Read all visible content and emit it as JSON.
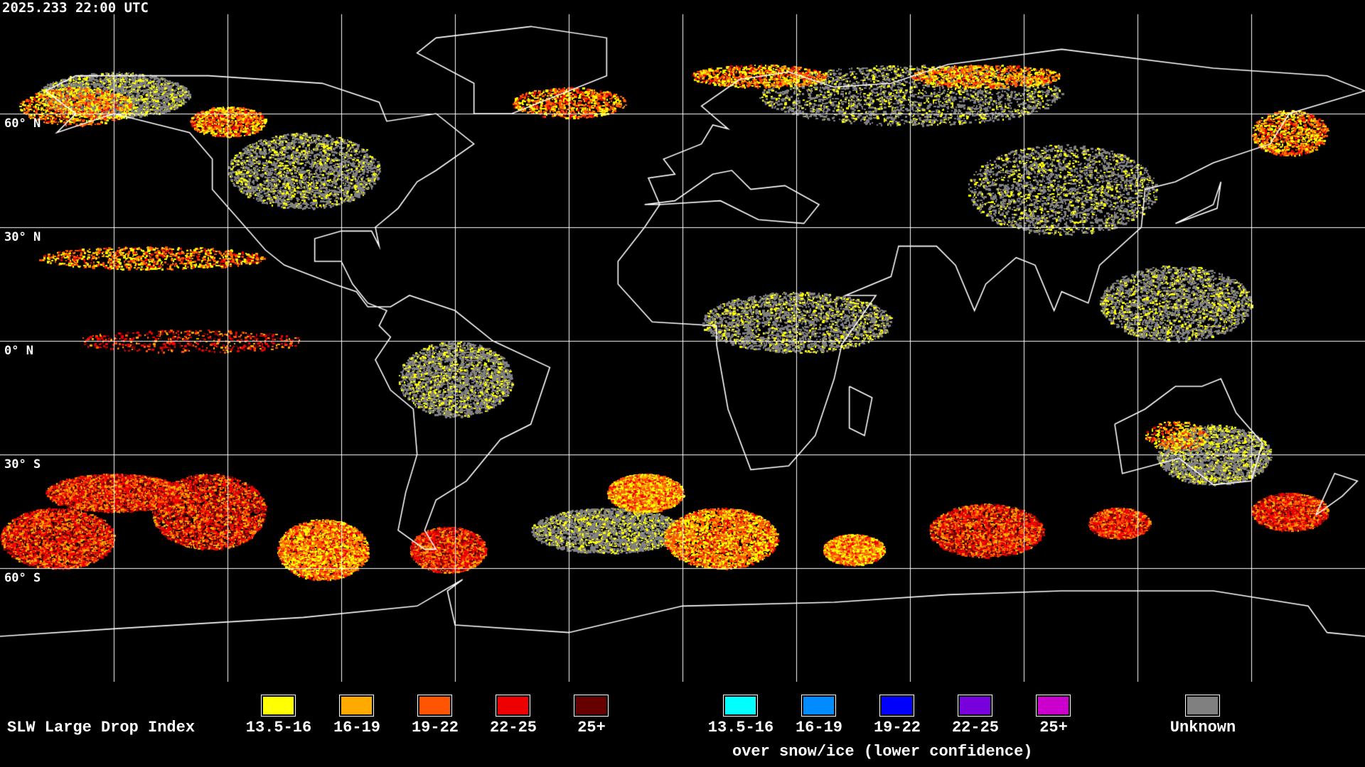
{
  "timestamp": "2025.233 22:00 UTC",
  "latitude_labels": [
    "60° N",
    "30° N",
    "0° N",
    "30° S",
    "60° S"
  ],
  "legend": {
    "title": "SLW Large Drop Index",
    "primary": [
      {
        "label": "13.5-16",
        "color": "#ffff00"
      },
      {
        "label": "16-19",
        "color": "#ffaa00"
      },
      {
        "label": "19-22",
        "color": "#ff5500"
      },
      {
        "label": "22-25",
        "color": "#ee0000"
      },
      {
        "label": "25+",
        "color": "#660000"
      }
    ],
    "snow_ice": [
      {
        "label": "13.5-16",
        "color": "#00ffff"
      },
      {
        "label": "16-19",
        "color": "#008cff"
      },
      {
        "label": "19-22",
        "color": "#0000ff"
      },
      {
        "label": "22-25",
        "color": "#7700dd"
      },
      {
        "label": "25+",
        "color": "#cc00cc"
      }
    ],
    "snow_ice_caption": "over snow/ice (lower confidence)",
    "unknown": {
      "label": "Unknown",
      "color": "#808080"
    }
  },
  "colors": {
    "background": "#000000",
    "grid": "#ffffff",
    "coastline": "#ffffff"
  }
}
